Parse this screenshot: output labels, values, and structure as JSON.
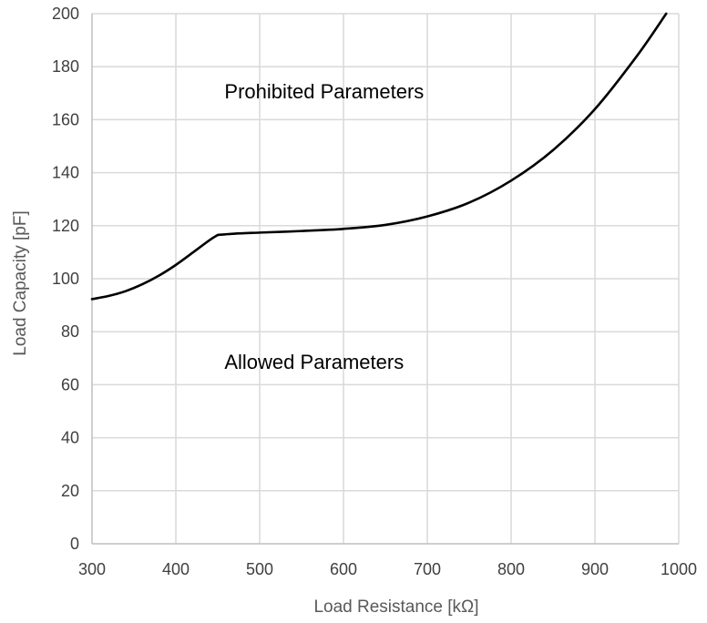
{
  "chart_data": {
    "type": "line",
    "title": "",
    "xlabel": "Load Resistance [kΩ]",
    "ylabel": "Load Capacity [pF]",
    "xlim": [
      300,
      1000
    ],
    "ylim": [
      0,
      200
    ],
    "xticks": [
      300,
      400,
      500,
      600,
      700,
      800,
      900,
      1000
    ],
    "yticks": [
      0,
      20,
      40,
      60,
      80,
      100,
      120,
      140,
      160,
      180,
      200
    ],
    "grid": true,
    "legend": "none",
    "colors": {
      "curve": "#000000",
      "grid": "#d9d9d9",
      "text": "#404040"
    },
    "annotations": [
      {
        "id": "prohibited",
        "text": "Prohibited Parameters",
        "x": 577,
        "y": 168
      },
      {
        "id": "allowed",
        "text": "Allowed Parameters",
        "x": 565,
        "y": 66
      }
    ],
    "series": [
      {
        "x": [
          300,
          320,
          340,
          360,
          380,
          400,
          420,
          440,
          450
        ],
        "y": [
          92.3,
          93.5,
          95.3,
          97.9,
          101.2,
          105.2,
          109.8,
          114.5,
          116.5
        ]
      },
      {
        "x": [
          450,
          470,
          500,
          550,
          600,
          650,
          700,
          750,
          800,
          850,
          900,
          950,
          985
        ],
        "y": [
          116.5,
          117.0,
          117.4,
          118.0,
          118.8,
          120.3,
          123.5,
          128.7,
          137.0,
          148.5,
          164.0,
          184.0,
          200.0
        ]
      }
    ]
  }
}
